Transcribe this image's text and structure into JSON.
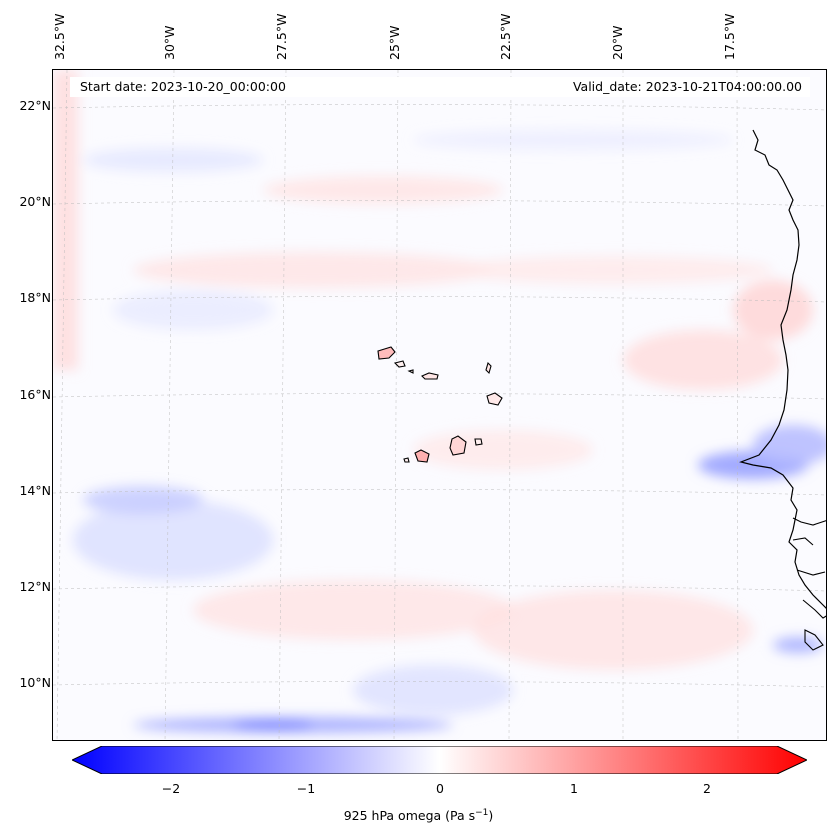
{
  "map": {
    "info": {
      "start": "Start date: 2023-10-20_00:00:00",
      "valid": "Valid_date: 2023-10-21T04:00:00.00"
    },
    "lon_labels": [
      "32.5°W",
      "30°W",
      "27.5°W",
      "25°W",
      "22.5°W",
      "20°W",
      "17.5°W"
    ],
    "lat_labels": [
      "22°N",
      "20°N",
      "18°N",
      "16°N",
      "14°N",
      "12°N",
      "10°N"
    ],
    "colorbar": {
      "ticks": [
        "−2",
        "−1",
        "0",
        "1",
        "2"
      ],
      "label": "925 hPa omega (Pa s",
      "label_sup": "−1",
      "label_end": ")",
      "range": [
        -2.5,
        2.5
      ],
      "colormap": "bwr"
    },
    "colors": {
      "negative": "#0000ff",
      "zero": "#ffffff",
      "positive": "#ff0000",
      "coast": "#000000"
    }
  }
}
